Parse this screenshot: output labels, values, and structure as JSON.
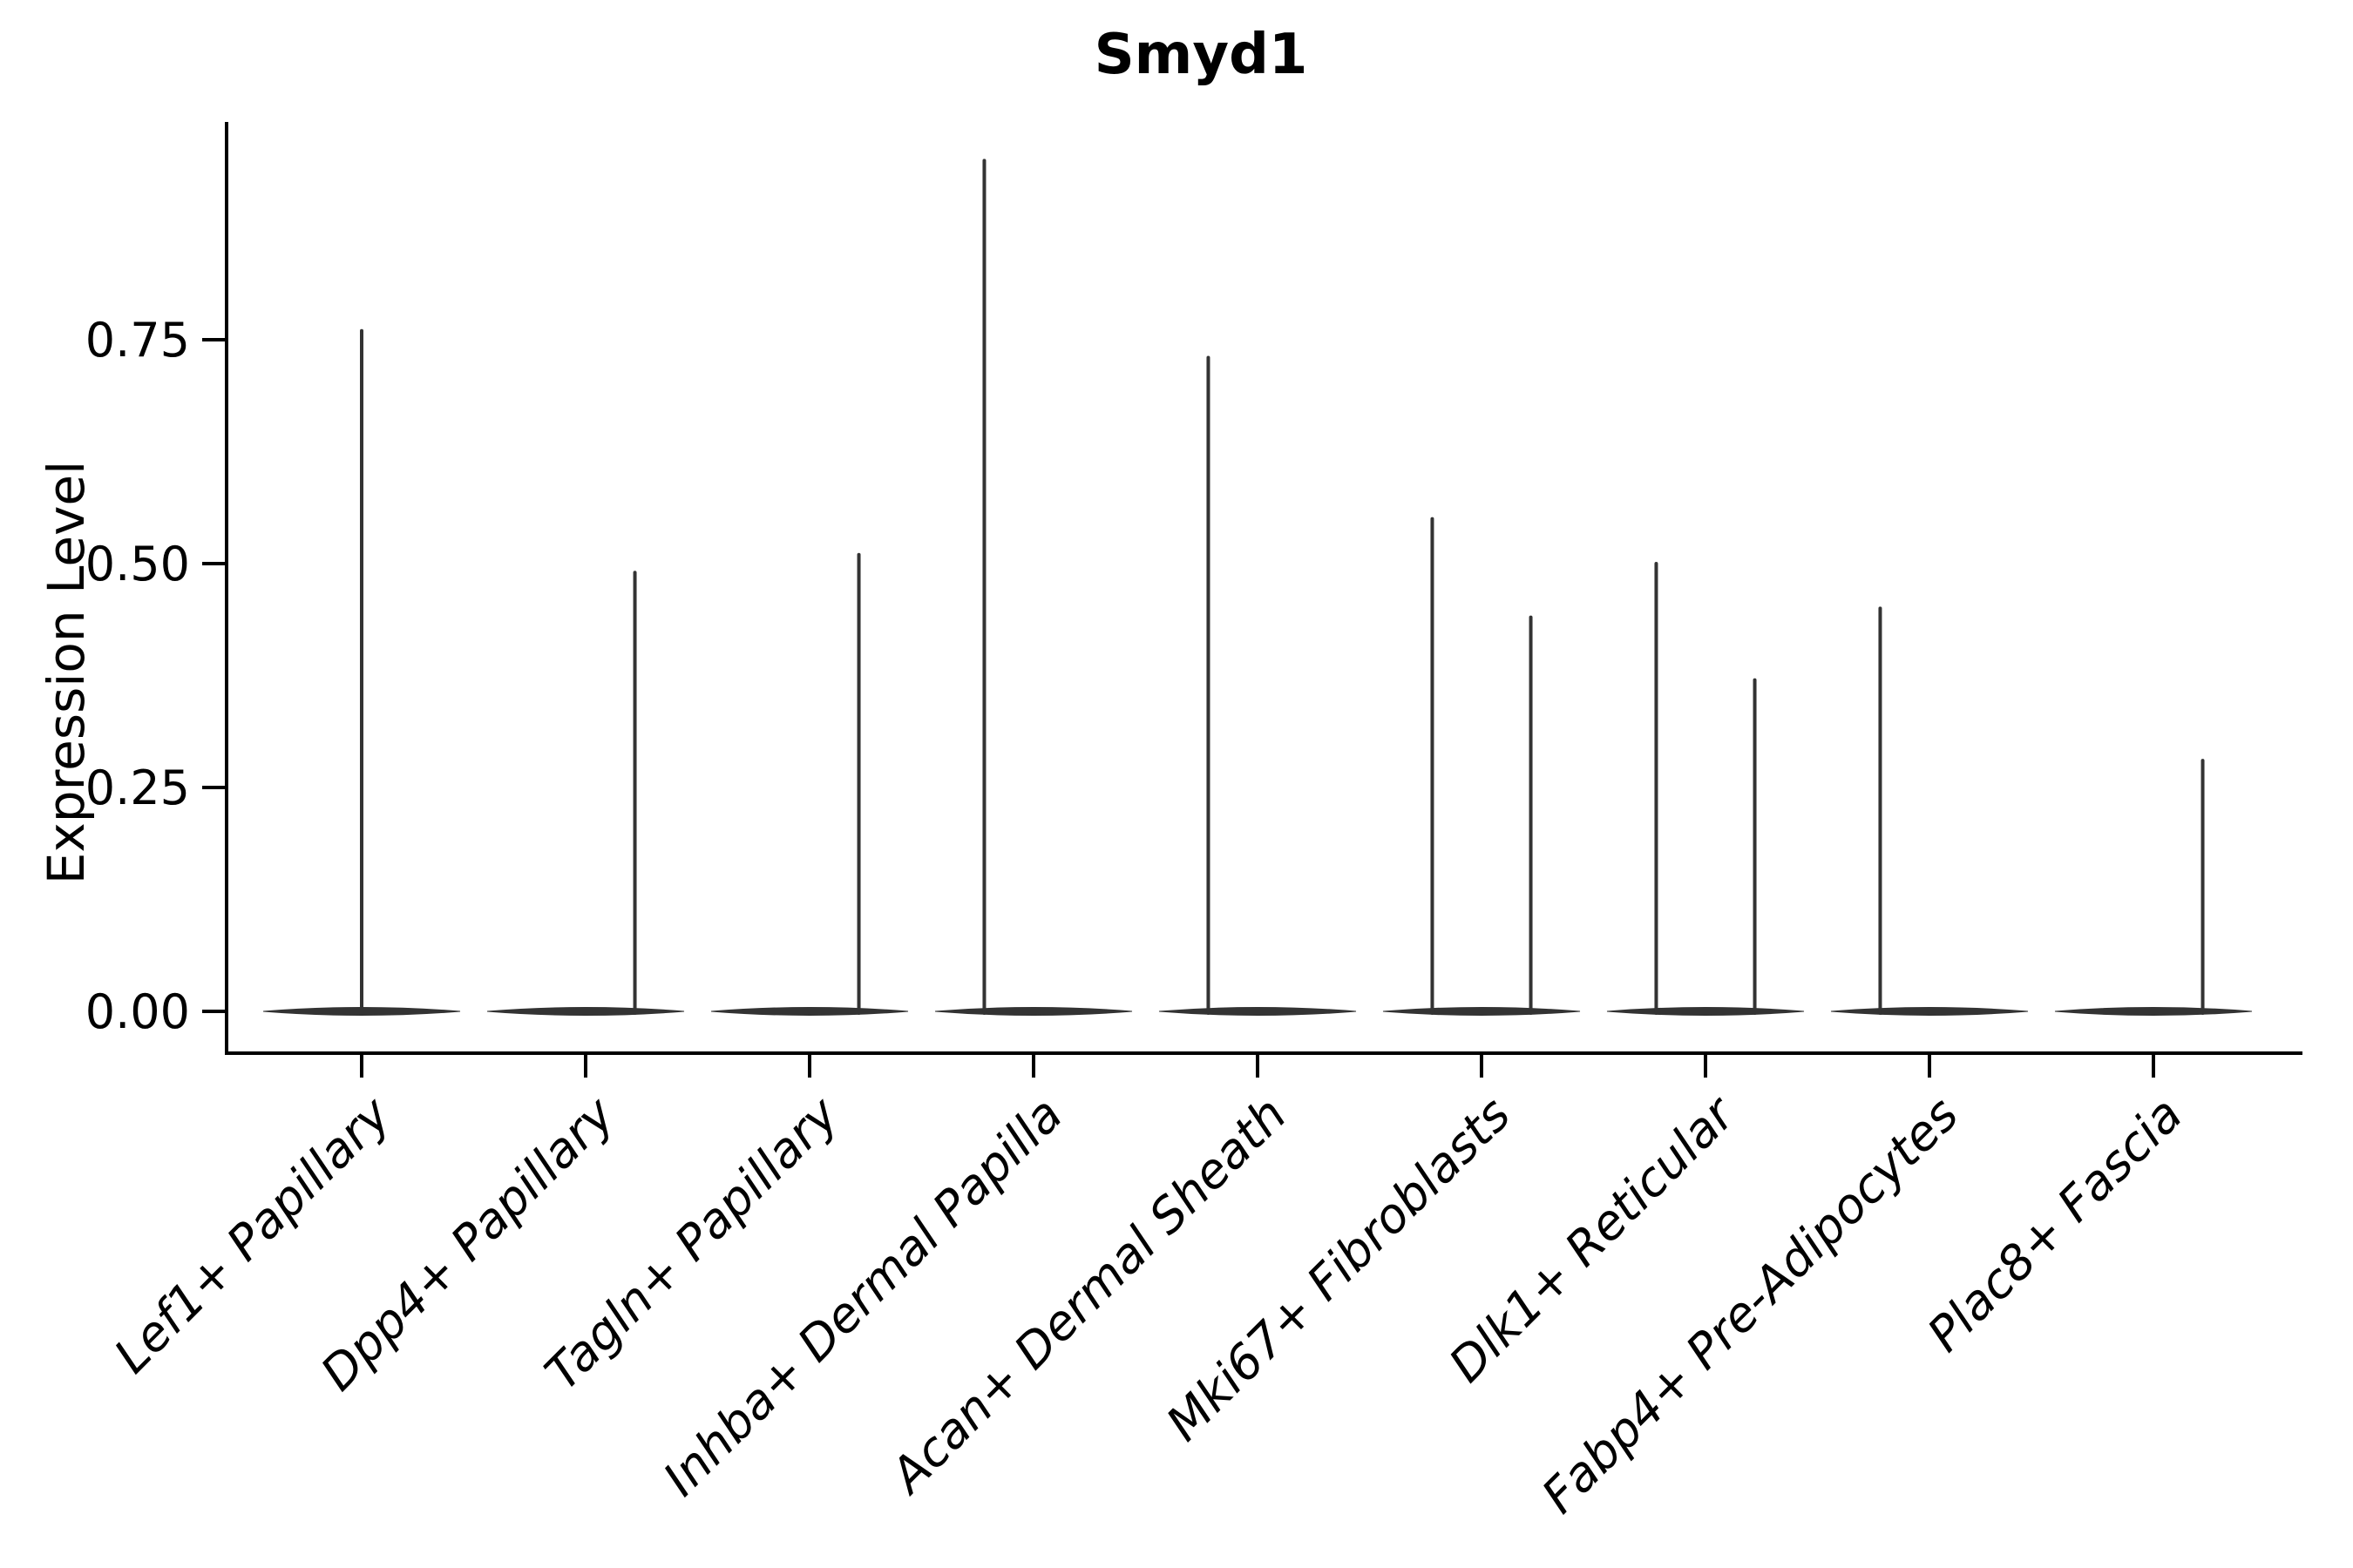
{
  "title": "Smyd1",
  "y_axis": {
    "label": "Expression Level",
    "tick_labels": [
      "0.00",
      "0.25",
      "0.50",
      "0.75"
    ],
    "tick_values": [
      0.0,
      0.25,
      0.5,
      0.75
    ]
  },
  "x_axis": {
    "label": "",
    "categories": [
      "Lef1+ Papillary",
      "Dpp4+ Papillary",
      "Tagln+ Papillary",
      "Inhba+ Dermal Papilla",
      "Acan+ Dermal Sheath",
      "Mki67+ Fibroblasts",
      "Dlk1+ Reticular",
      "Fabp4+ Pre-Adipocytes",
      "Plac8+ Fascia"
    ]
  },
  "chart_data": {
    "type": "violin",
    "title": "Smyd1",
    "xlabel": "",
    "ylabel": "Expression Level",
    "ylim": [
      -0.05,
      0.99
    ],
    "y_ticks": [
      0.0,
      0.25,
      0.5,
      0.75
    ],
    "grid": false,
    "legend": null,
    "categories": [
      "Lef1+ Papillary",
      "Dpp4+ Papillary",
      "Tagln+ Papillary",
      "Inhba+ Dermal Papilla",
      "Acan+ Dermal Sheath",
      "Mki67+ Fibroblasts",
      "Dlk1+ Reticular",
      "Fabp4+ Pre-Adipocytes",
      "Plac8+ Fascia"
    ],
    "violins": [
      {
        "category": "Lef1+ Papillary",
        "bulk_value": 0.0,
        "max_expression": 0.76,
        "spikes": [
          {
            "offset_units": 0.0,
            "peak": 0.76
          }
        ]
      },
      {
        "category": "Dpp4+ Papillary",
        "bulk_value": 0.0,
        "max_expression": 0.49,
        "spikes": [
          {
            "offset_units": 0.22,
            "peak": 0.49
          }
        ]
      },
      {
        "category": "Tagln+ Papillary",
        "bulk_value": 0.0,
        "max_expression": 0.51,
        "spikes": [
          {
            "offset_units": 0.22,
            "peak": 0.51
          }
        ]
      },
      {
        "category": "Inhba+ Dermal Papilla",
        "bulk_value": 0.0,
        "max_expression": 0.95,
        "spikes": [
          {
            "offset_units": -0.22,
            "peak": 0.95
          }
        ]
      },
      {
        "category": "Acan+ Dermal Sheath",
        "bulk_value": 0.0,
        "max_expression": 0.73,
        "spikes": [
          {
            "offset_units": -0.22,
            "peak": 0.73
          }
        ]
      },
      {
        "category": "Mki67+ Fibroblasts",
        "bulk_value": 0.0,
        "max_expression": 0.55,
        "spikes": [
          {
            "offset_units": -0.22,
            "peak": 0.55
          },
          {
            "offset_units": 0.22,
            "peak": 0.44
          }
        ]
      },
      {
        "category": "Dlk1+ Reticular",
        "bulk_value": 0.0,
        "max_expression": 0.5,
        "spikes": [
          {
            "offset_units": -0.22,
            "peak": 0.5
          },
          {
            "offset_units": 0.22,
            "peak": 0.37
          }
        ]
      },
      {
        "category": "Fabp4+ Pre-Adipocytes",
        "bulk_value": 0.0,
        "max_expression": 0.45,
        "spikes": [
          {
            "offset_units": -0.22,
            "peak": 0.45
          }
        ]
      },
      {
        "category": "Plac8+ Fascia",
        "bulk_value": 0.0,
        "max_expression": 0.28,
        "spikes": [
          {
            "offset_units": 0.22,
            "peak": 0.28
          }
        ]
      }
    ],
    "violin_body_width_units": 0.88
  },
  "style": {
    "violin_color": "#333333",
    "axis_color": "#000000",
    "text_color": "#000000",
    "background": "#ffffff"
  }
}
